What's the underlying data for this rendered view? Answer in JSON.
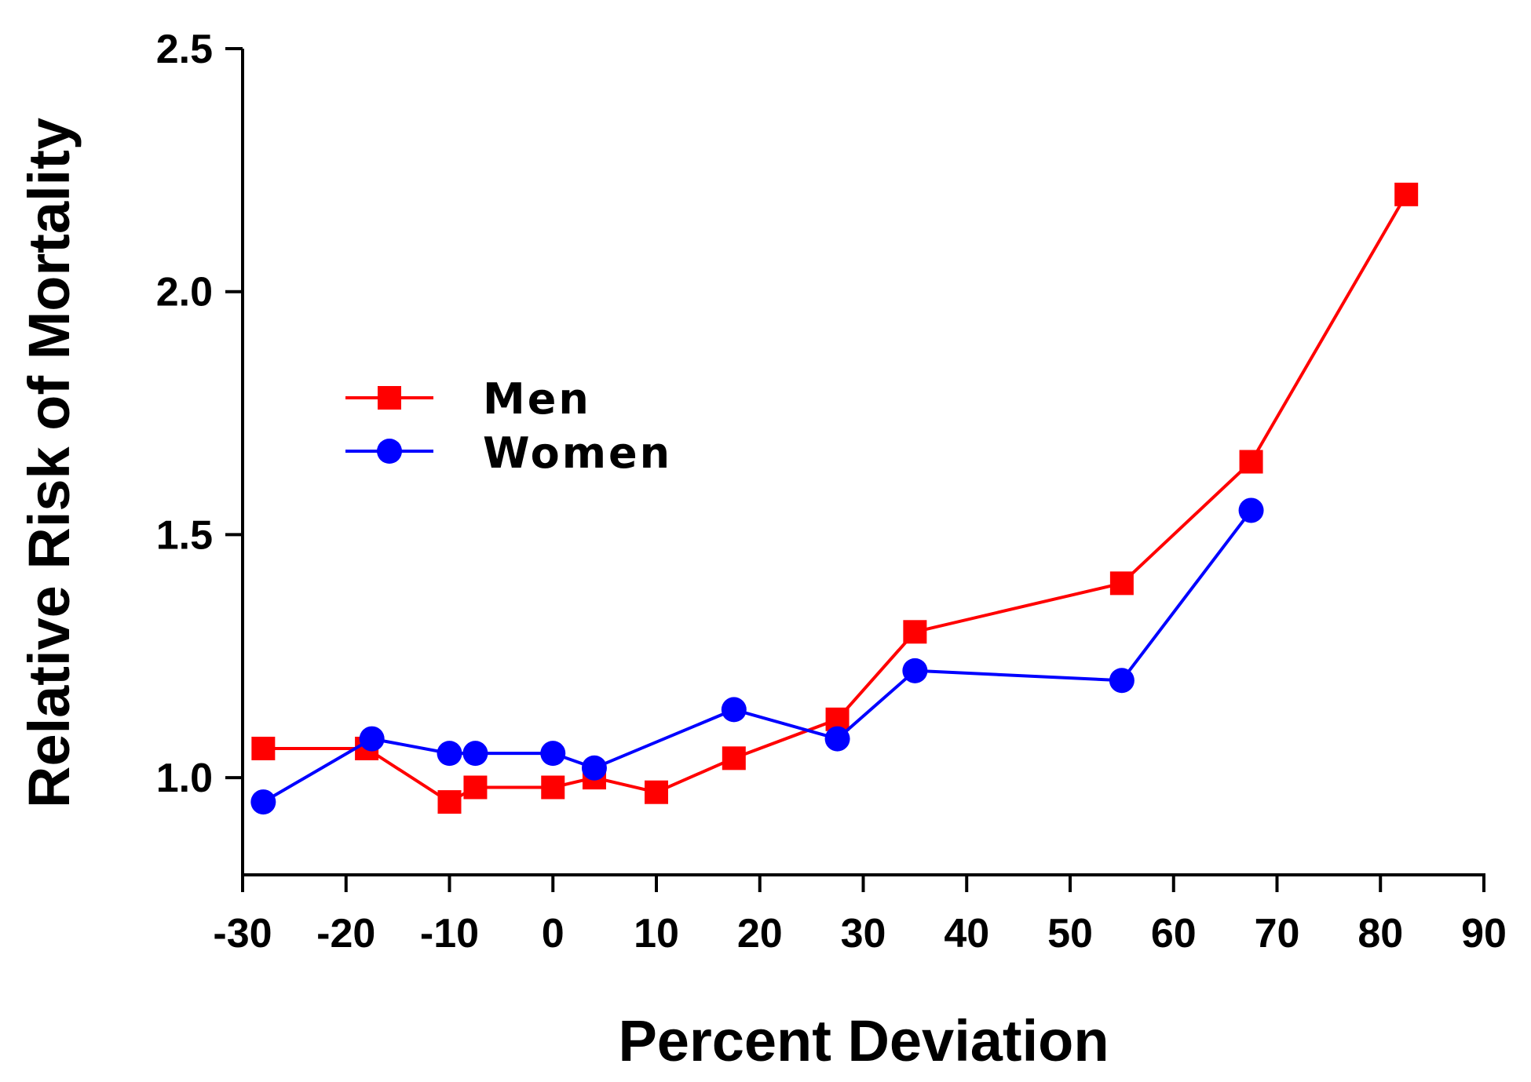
{
  "chart_data": {
    "type": "line",
    "title": "",
    "xlabel": "Percent Deviation",
    "ylabel": "Relative Risk of Mortality",
    "xlim": [
      -30,
      90
    ],
    "ylim": [
      0.8,
      2.5
    ],
    "xticks": [
      -30,
      -20,
      -10,
      0,
      10,
      20,
      30,
      40,
      50,
      60,
      70,
      80,
      90
    ],
    "xtick_labels": [
      "-30",
      "-20",
      "-10",
      "0",
      "10",
      "20",
      "30",
      "40",
      "50",
      "60",
      "70",
      "80",
      "90"
    ],
    "yticks": [
      1.0,
      1.5,
      2.0,
      2.5
    ],
    "ytick_labels": [
      "1.0",
      "1.5",
      "2.0",
      "2.5"
    ],
    "grid": false,
    "legend_position": "upper-left",
    "series": [
      {
        "name": "Men",
        "color": "#ff0000",
        "marker": "square",
        "x": [
          -28,
          -18,
          -10,
          -7.5,
          0,
          4,
          10,
          17.5,
          27.5,
          35,
          55,
          67.5,
          82.5
        ],
        "y": [
          1.06,
          1.06,
          0.95,
          0.98,
          0.98,
          1.0,
          0.97,
          1.04,
          1.12,
          1.3,
          1.4,
          1.65,
          2.2
        ]
      },
      {
        "name": "Women",
        "color": "#0000ff",
        "marker": "circle",
        "x": [
          -28,
          -17.5,
          -10,
          -7.5,
          0,
          4,
          17.5,
          27.5,
          35,
          55,
          67.5
        ],
        "y": [
          0.95,
          1.08,
          1.05,
          1.05,
          1.05,
          1.02,
          1.14,
          1.08,
          1.22,
          1.2,
          1.55
        ]
      }
    ]
  }
}
